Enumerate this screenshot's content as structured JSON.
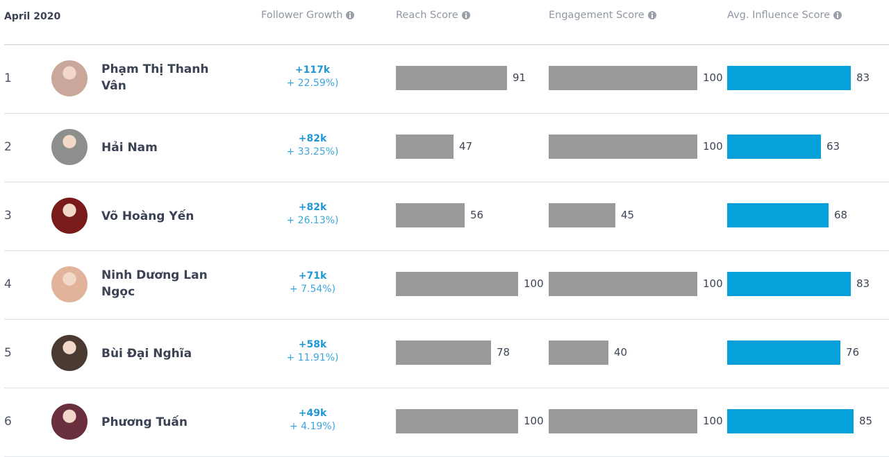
{
  "header": {
    "period": "April 2020",
    "columns": {
      "follower_growth": "Follower Growth",
      "reach": "Reach Score",
      "engagement": "Engagement Score",
      "influence": "Avg. Influence Score"
    },
    "info_icon": "info-circle-icon"
  },
  "colors": {
    "growth_text": "#1e97d4",
    "score_bar": "#999999",
    "influence_bar": "#06a0da"
  },
  "rows": [
    {
      "rank": "1",
      "name": "Phạm Thị Thanh Vân",
      "growth": "+117k",
      "growth_pct": "+ 22.59%)",
      "reach": 91,
      "reach_label": "91",
      "engagement": 100,
      "engagement_label": "100",
      "influence": 83,
      "influence_label": "83",
      "avatar_color": "#c9a79a"
    },
    {
      "rank": "2",
      "name": "Hải Nam",
      "growth": "+82k",
      "growth_pct": "+ 33.25%)",
      "reach": 47,
      "reach_label": "47",
      "engagement": 100,
      "engagement_label": "100",
      "influence": 63,
      "influence_label": "63",
      "avatar_color": "#8d8f8c"
    },
    {
      "rank": "3",
      "name": "Võ Hoàng Yến",
      "growth": "+82k",
      "growth_pct": "+ 26.13%)",
      "reach": 56,
      "reach_label": "56",
      "engagement": 45,
      "engagement_label": "45",
      "influence": 68,
      "influence_label": "68",
      "avatar_color": "#7a1b1b"
    },
    {
      "rank": "4",
      "name": "Ninh Dương Lan Ngọc",
      "growth": "+71k",
      "growth_pct": "+ 7.54%)",
      "reach": 100,
      "reach_label": "100",
      "engagement": 100,
      "engagement_label": "100",
      "influence": 83,
      "influence_label": "83",
      "avatar_color": "#e0b39a"
    },
    {
      "rank": "5",
      "name": "Bùi Đại Nghĩa",
      "growth": "+58k",
      "growth_pct": "+ 11.91%)",
      "reach": 78,
      "reach_label": "78",
      "engagement": 40,
      "engagement_label": "40",
      "influence": 76,
      "influence_label": "76",
      "avatar_color": "#4b3a31"
    },
    {
      "rank": "6",
      "name": "Phương Tuấn",
      "growth": "+49k",
      "growth_pct": "+ 4.19%)",
      "reach": 100,
      "reach_label": "100",
      "engagement": 100,
      "engagement_label": "100",
      "influence": 85,
      "influence_label": "85",
      "avatar_color": "#6a2f3d"
    }
  ]
}
